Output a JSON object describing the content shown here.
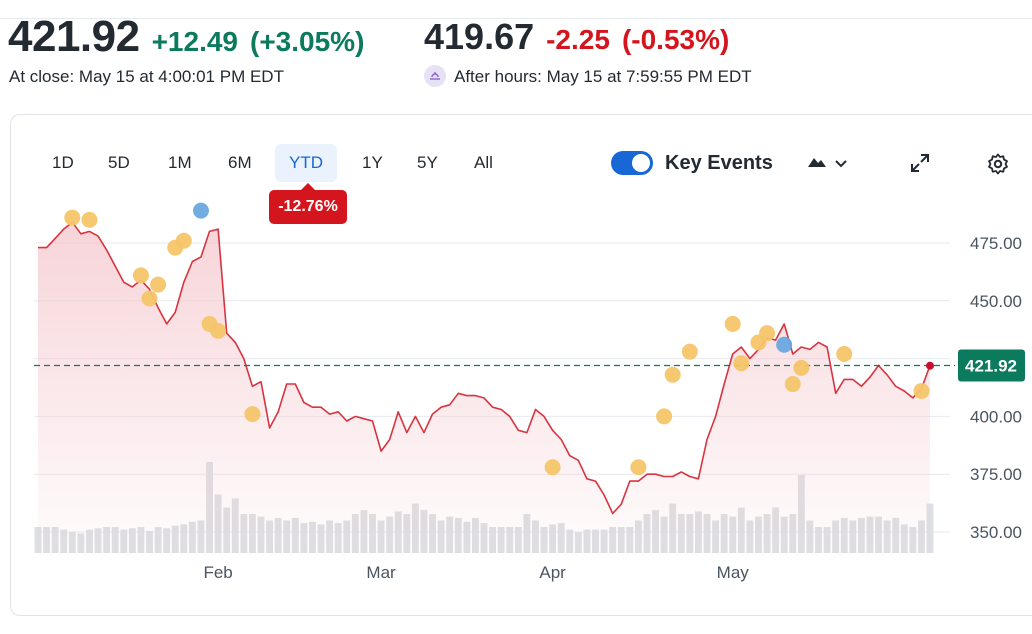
{
  "quote": {
    "close_price": "421.92",
    "close_change": "+12.49",
    "close_change_pct": "(+3.05%)",
    "close_time": "At close: May 15 at 4:00:01 PM EDT",
    "after_price": "419.67",
    "after_change": "-2.25",
    "after_change_pct": "(-0.53%)",
    "after_time": "After hours: May 15 at 7:59:55 PM EDT"
  },
  "ranges": [
    "1D",
    "5D",
    "1M",
    "6M",
    "YTD",
    "1Y",
    "5Y",
    "All"
  ],
  "selected_range": "YTD",
  "range_change": "-12.76%",
  "key_events_label": "Key Events",
  "colors": {
    "line": "#d8343f",
    "area": "#f4c6cc",
    "event_earnings": "#f5c56a",
    "event_other": "#6aa8de",
    "last_price": "#0c7a5d",
    "positive": "#0c7a5d",
    "negative": "#d4151e"
  },
  "icons": {
    "toggle": "toggle-switch-icon",
    "chart_type": "mountain-chart-icon",
    "dropdown": "chevron-down-icon",
    "expand": "expand-arrows-icon",
    "settings": "gear-icon",
    "after_hours": "moon-icon"
  },
  "chart_data": {
    "type": "line",
    "y_ticks": [
      "475.00",
      "450.00",
      "425.00",
      "400.00",
      "375.00",
      "350.00"
    ],
    "ylim": [
      345,
      485
    ],
    "x_ticks": [
      {
        "label": "Feb",
        "index": 21
      },
      {
        "label": "Mar",
        "index": 40
      },
      {
        "label": "Apr",
        "index": 60
      },
      {
        "label": "May",
        "index": 81
      }
    ],
    "prices": [
      473,
      473,
      477,
      481,
      484,
      479,
      480,
      478,
      472,
      465,
      458,
      456,
      459,
      455,
      447,
      440,
      445,
      458,
      467,
      469,
      480,
      481,
      436,
      432,
      425,
      413,
      415,
      395,
      402,
      414,
      414,
      406,
      404,
      404,
      401,
      402,
      398,
      400,
      399,
      398,
      385,
      390,
      402,
      393,
      400,
      393,
      401,
      404,
      405,
      410,
      409,
      409,
      408,
      404,
      403,
      400,
      394,
      393,
      403,
      400,
      394,
      390,
      383,
      381,
      373,
      372,
      366,
      358,
      362,
      372,
      372,
      375,
      375,
      374,
      374,
      376,
      374,
      373,
      390,
      400,
      414,
      427,
      430,
      425,
      429,
      434,
      433,
      440,
      427,
      430,
      429,
      432,
      430,
      410,
      416,
      416,
      413,
      417,
      422,
      418,
      413,
      411,
      408,
      412,
      422
    ],
    "volume": [
      0.2,
      0.2,
      0.2,
      0.18,
      0.16,
      0.15,
      0.18,
      0.19,
      0.2,
      0.2,
      0.18,
      0.19,
      0.2,
      0.17,
      0.2,
      0.19,
      0.21,
      0.22,
      0.24,
      0.25,
      0.7,
      0.45,
      0.35,
      0.42,
      0.3,
      0.3,
      0.28,
      0.25,
      0.27,
      0.25,
      0.27,
      0.23,
      0.24,
      0.22,
      0.25,
      0.23,
      0.25,
      0.3,
      0.33,
      0.3,
      0.25,
      0.28,
      0.32,
      0.3,
      0.38,
      0.33,
      0.3,
      0.25,
      0.28,
      0.27,
      0.24,
      0.27,
      0.23,
      0.2,
      0.2,
      0.2,
      0.2,
      0.3,
      0.25,
      0.2,
      0.22,
      0.23,
      0.18,
      0.16,
      0.18,
      0.18,
      0.18,
      0.2,
      0.2,
      0.2,
      0.25,
      0.3,
      0.33,
      0.28,
      0.38,
      0.3,
      0.3,
      0.32,
      0.3,
      0.25,
      0.3,
      0.28,
      0.35,
      0.25,
      0.28,
      0.3,
      0.35,
      0.28,
      0.3,
      0.6,
      0.25,
      0.2,
      0.2,
      0.25,
      0.27,
      0.25,
      0.27,
      0.28,
      0.28,
      0.25,
      0.27,
      0.22,
      0.2,
      0.25,
      0.38
    ],
    "events": [
      {
        "index": 4,
        "price": 486,
        "kind": "earnings"
      },
      {
        "index": 6,
        "price": 485,
        "kind": "earnings"
      },
      {
        "index": 12,
        "price": 461,
        "kind": "earnings"
      },
      {
        "index": 13,
        "price": 451,
        "kind": "earnings"
      },
      {
        "index": 14,
        "price": 457,
        "kind": "earnings"
      },
      {
        "index": 16,
        "price": 473,
        "kind": "earnings"
      },
      {
        "index": 17,
        "price": 476,
        "kind": "earnings"
      },
      {
        "index": 19,
        "price": 489,
        "kind": "other"
      },
      {
        "index": 20,
        "price": 440,
        "kind": "earnings"
      },
      {
        "index": 21,
        "price": 437,
        "kind": "earnings"
      },
      {
        "index": 25,
        "price": 401,
        "kind": "earnings"
      },
      {
        "index": 60,
        "price": 378,
        "kind": "earnings"
      },
      {
        "index": 70,
        "price": 378,
        "kind": "earnings"
      },
      {
        "index": 73,
        "price": 400,
        "kind": "earnings"
      },
      {
        "index": 74,
        "price": 418,
        "kind": "earnings"
      },
      {
        "index": 76,
        "price": 428,
        "kind": "earnings"
      },
      {
        "index": 81,
        "price": 440,
        "kind": "earnings"
      },
      {
        "index": 82,
        "price": 423,
        "kind": "earnings"
      },
      {
        "index": 84,
        "price": 432,
        "kind": "earnings"
      },
      {
        "index": 85,
        "price": 436,
        "kind": "earnings"
      },
      {
        "index": 87,
        "price": 431,
        "kind": "other"
      },
      {
        "index": 88,
        "price": 414,
        "kind": "earnings"
      },
      {
        "index": 89,
        "price": 421,
        "kind": "earnings"
      },
      {
        "index": 94,
        "price": 427,
        "kind": "earnings"
      },
      {
        "index": 103,
        "price": 411,
        "kind": "earnings"
      }
    ],
    "reference_price": 422,
    "last_price": 421.92,
    "last_price_label": "421.92",
    "grid": true
  }
}
